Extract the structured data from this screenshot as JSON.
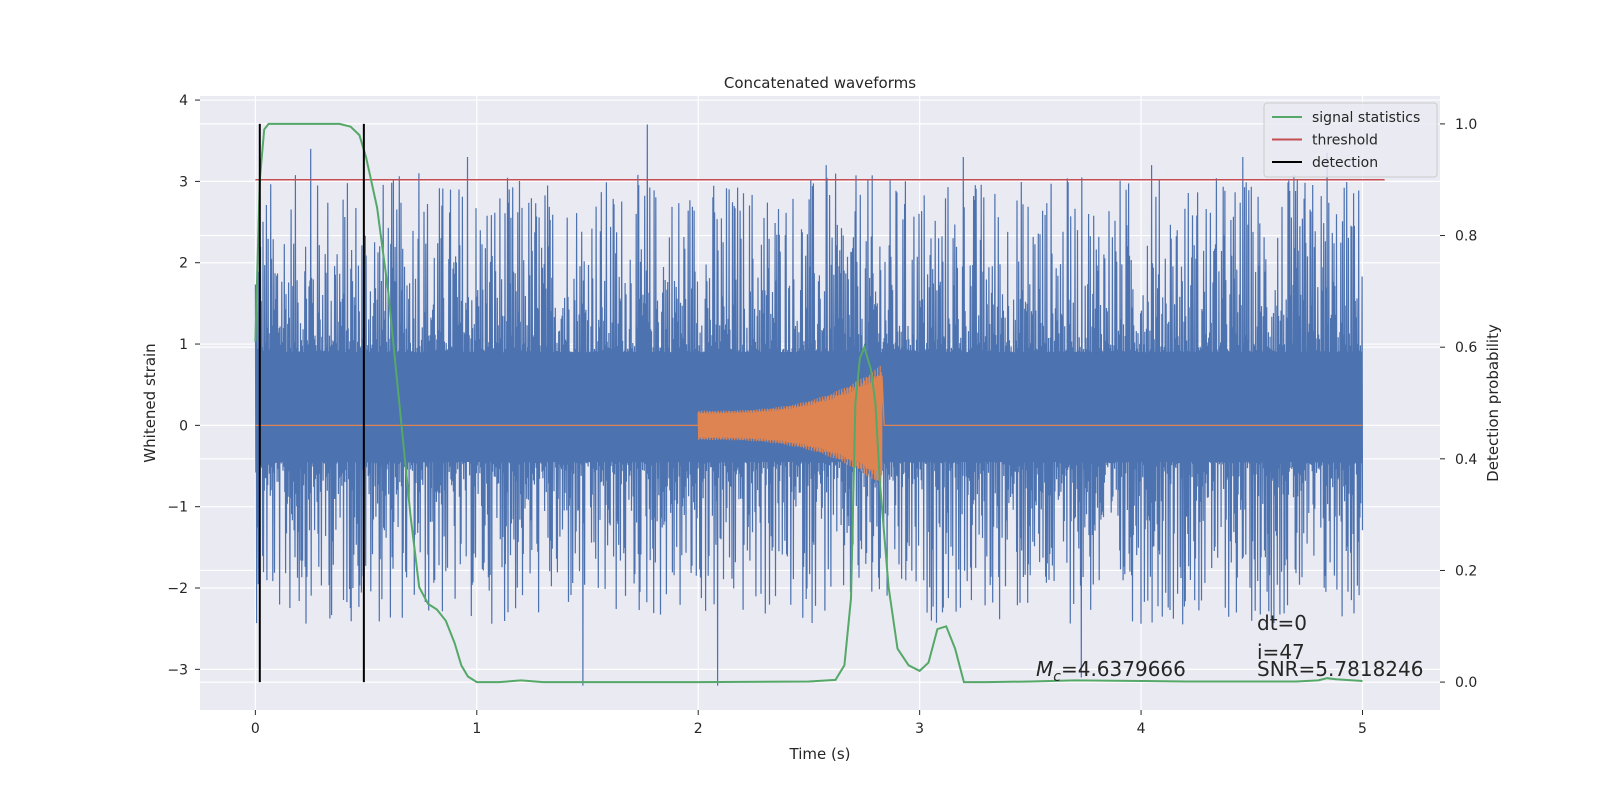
{
  "chart_data": {
    "type": "line",
    "title": "Concatenated waveforms",
    "xlabel": "Time (s)",
    "ylabel": "Whitened strain",
    "y2label": "Detection probability",
    "xlim": [
      -0.25,
      5.35
    ],
    "ylim": [
      -3.5,
      4.05
    ],
    "y2lim": [
      -0.05,
      1.05
    ],
    "x_ticks": [
      0,
      1,
      2,
      3,
      4,
      5
    ],
    "y_ticks": [
      -3,
      -2,
      -1,
      0,
      1,
      2,
      3,
      4
    ],
    "y2_ticks": [
      0.0,
      0.2,
      0.4,
      0.6,
      0.8,
      1.0
    ],
    "grid": true,
    "legend_position": "top-right",
    "legend": [
      {
        "name": "signal statistics",
        "color": "#55a868"
      },
      {
        "name": "threshold",
        "color": "#c44e52"
      },
      {
        "name": "detection",
        "color": "#000000"
      }
    ],
    "noise": {
      "color": "#4c72b0",
      "x_range": [
        0,
        5
      ],
      "sample_rate": 2048,
      "core_range": [
        -0.45,
        0.9
      ],
      "notable_peaks": [
        {
          "x": 0.25,
          "y": 3.4
        },
        {
          "x": 0.74,
          "y": 3.1
        },
        {
          "x": 0.96,
          "y": 3.3
        },
        {
          "x": 1.48,
          "y": -3.2
        },
        {
          "x": 1.77,
          "y": 3.7
        },
        {
          "x": 2.09,
          "y": -3.2
        },
        {
          "x": 2.58,
          "y": 3.2
        },
        {
          "x": 3.2,
          "y": 3.3
        },
        {
          "x": 3.73,
          "y": -3.1
        },
        {
          "x": 4.05,
          "y": 3.2
        },
        {
          "x": 4.46,
          "y": 3.3
        },
        {
          "x": 4.84,
          "y": 3.35
        }
      ]
    },
    "injection": {
      "color": "#dd8452",
      "x_start": 2.0,
      "x_merge": 2.83,
      "x_end": 3.0,
      "amplitude_start": 0.18,
      "amplitude_peak": 0.75
    },
    "threshold": {
      "color": "#c44e52",
      "y2": 0.9,
      "x_range": [
        0,
        5.1
      ]
    },
    "detections": [
      {
        "x": 0.02,
        "y2_range": [
          0.0,
          1.0
        ]
      },
      {
        "x": 0.49,
        "y2_range": [
          0.0,
          1.0
        ]
      }
    ],
    "signal_statistics": {
      "color": "#55a868",
      "x": [
        0,
        0.02,
        0.04,
        0.06,
        0.1,
        0.2,
        0.3,
        0.38,
        0.43,
        0.47,
        0.5,
        0.55,
        0.6,
        0.65,
        0.7,
        0.74,
        0.78,
        0.82,
        0.86,
        0.9,
        0.93,
        0.96,
        1.0,
        1.1,
        1.2,
        1.3,
        1.5,
        2.0,
        2.5,
        2.62,
        2.66,
        2.69,
        2.71,
        2.73,
        2.75,
        2.78,
        2.8,
        2.82,
        2.86,
        2.9,
        2.95,
        3.0,
        3.04,
        3.08,
        3.12,
        3.16,
        3.2,
        3.3,
        3.5,
        3.7,
        4.0,
        4.2,
        4.5,
        4.7,
        4.8,
        4.84,
        4.88,
        5.0
      ],
      "y2": [
        0.61,
        0.9,
        0.99,
        1.0,
        1.0,
        1.0,
        1.0,
        1.0,
        0.995,
        0.98,
        0.94,
        0.85,
        0.7,
        0.5,
        0.3,
        0.17,
        0.14,
        0.13,
        0.11,
        0.07,
        0.03,
        0.01,
        0.0,
        0.0,
        0.003,
        0.0,
        0.0,
        0.0,
        0.001,
        0.004,
        0.03,
        0.15,
        0.5,
        0.58,
        0.6,
        0.56,
        0.5,
        0.36,
        0.17,
        0.06,
        0.03,
        0.02,
        0.035,
        0.095,
        0.1,
        0.06,
        0.0,
        0.0,
        0.001,
        0.003,
        0.002,
        0.001,
        0.001,
        0.001,
        0.003,
        0.007,
        0.005,
        0.002
      ]
    },
    "annotations": {
      "mc_symbol": "M",
      "mc_subscript": "c",
      "mc_value": "=4.6379666",
      "dt": "dt=0",
      "i": "i=47",
      "snr": "SNR=5.7818246"
    }
  }
}
